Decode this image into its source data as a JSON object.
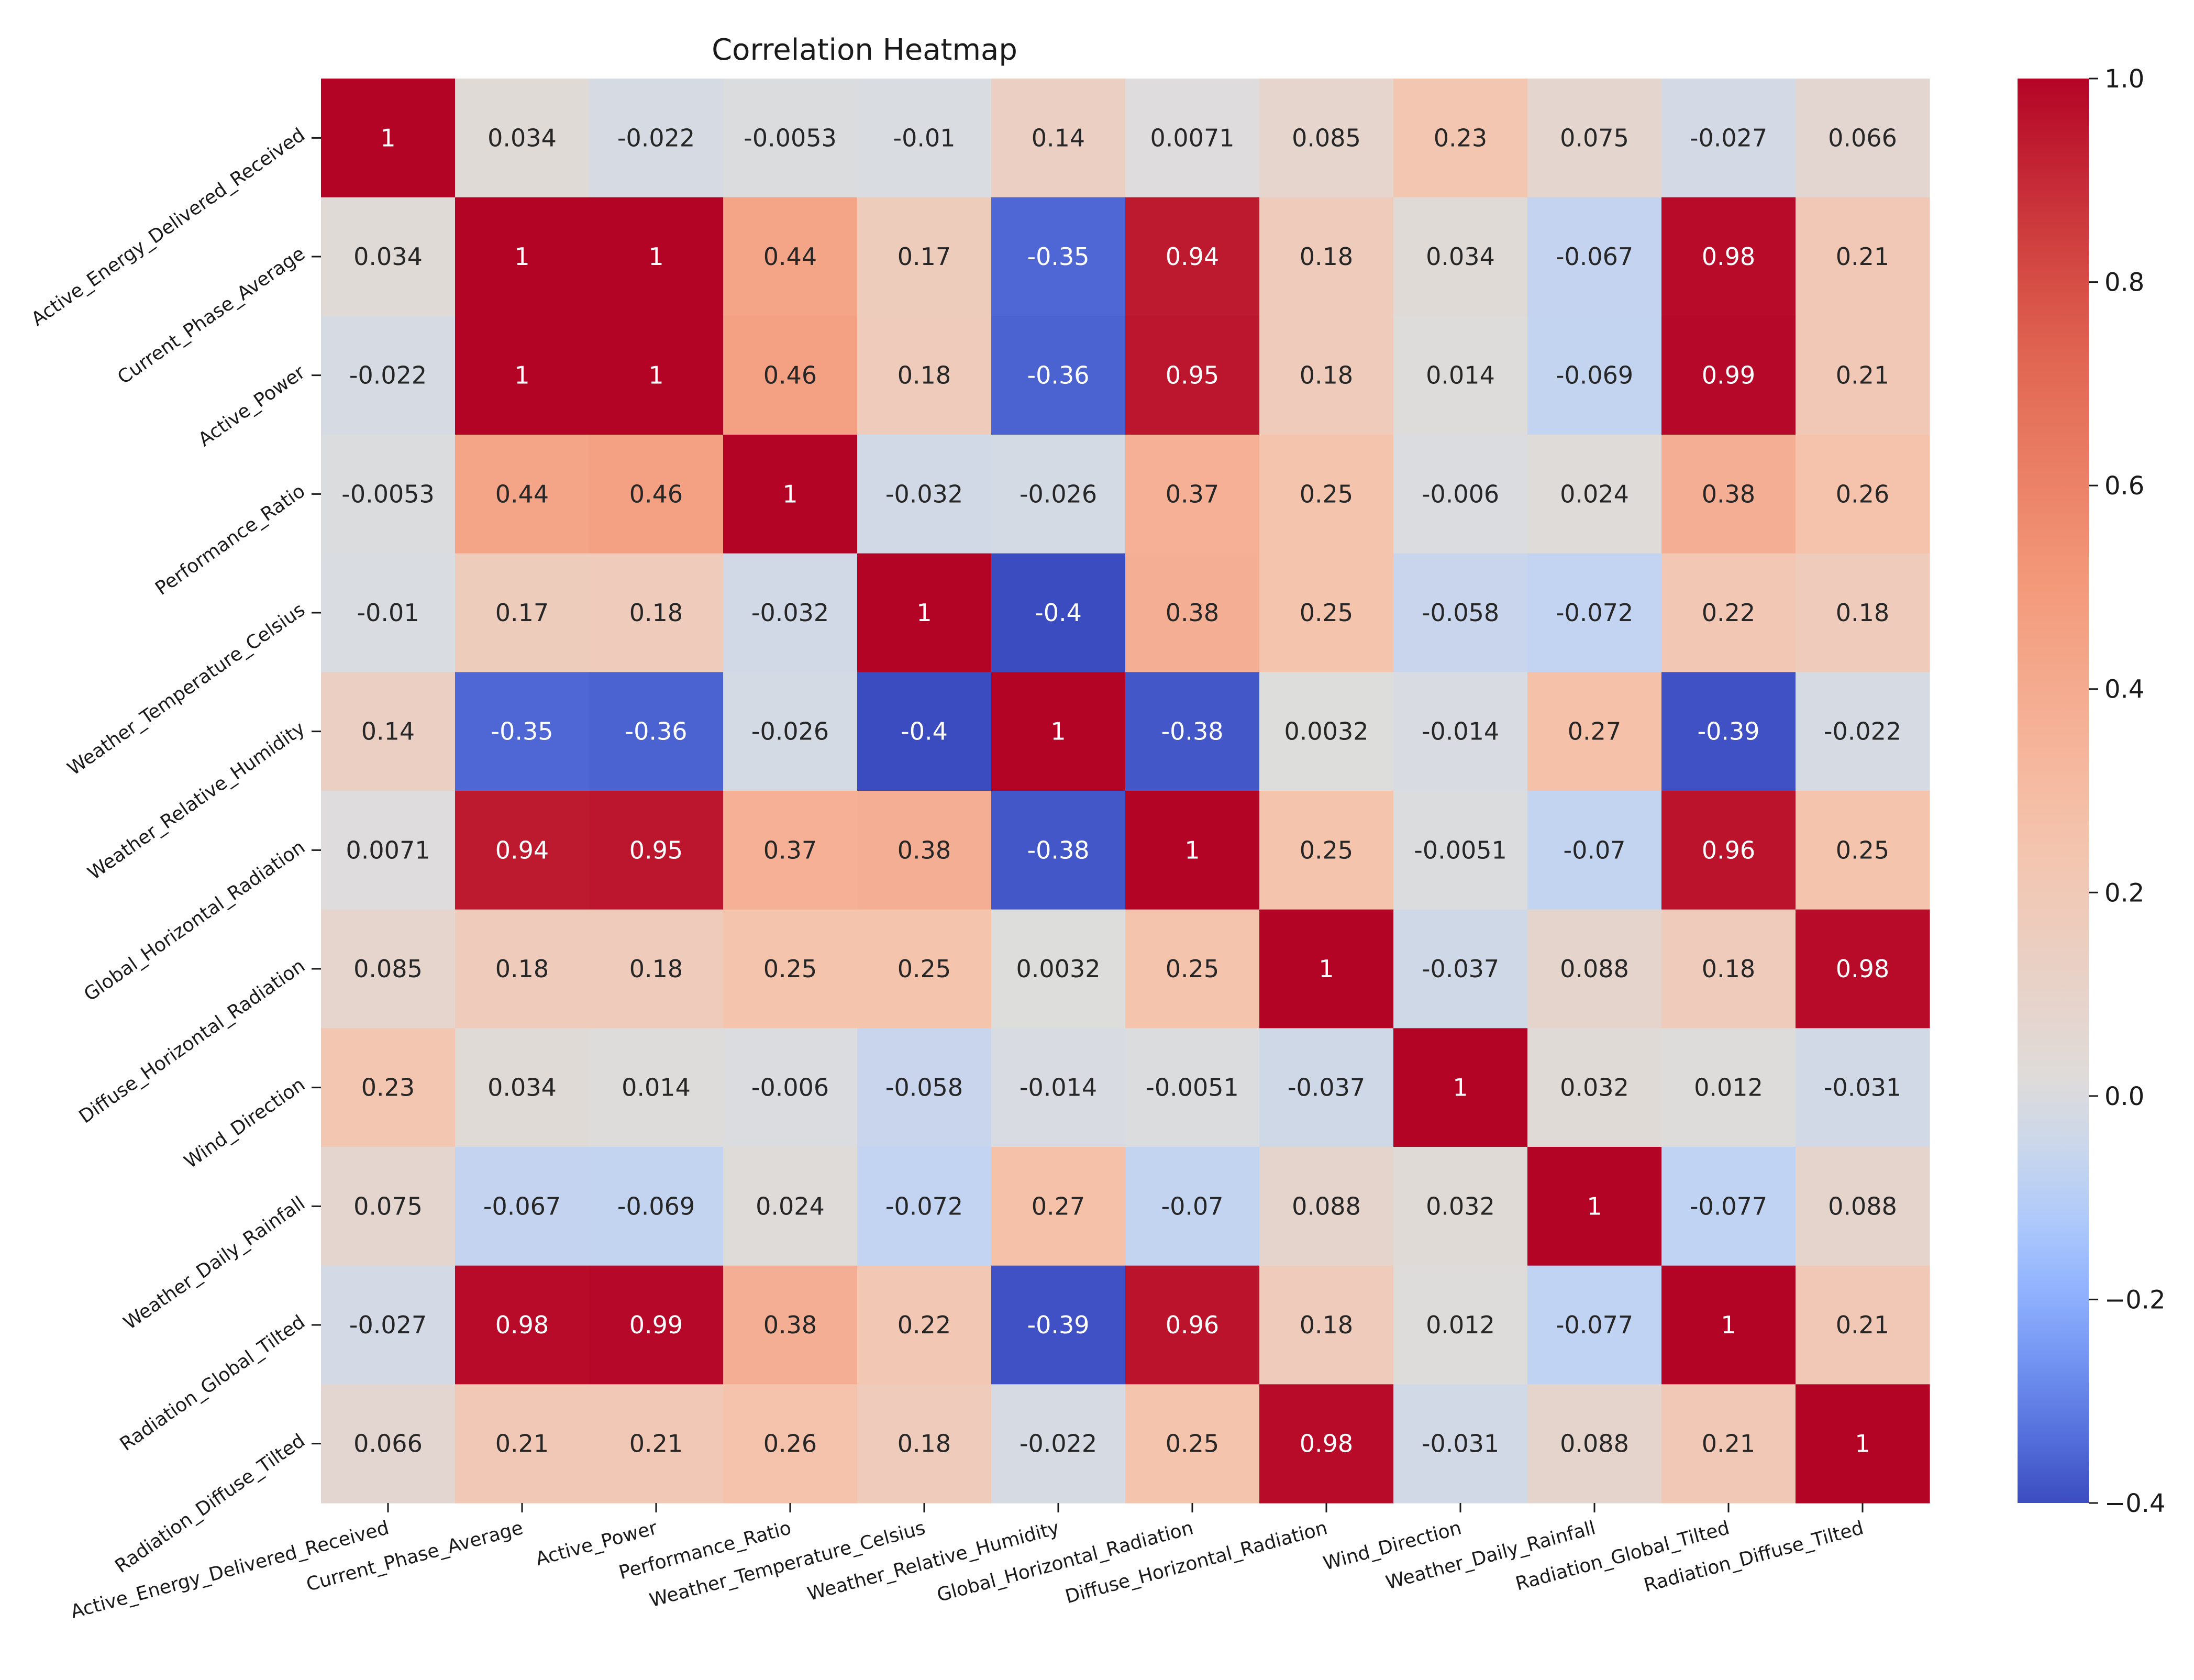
{
  "chart_data": {
    "type": "heatmap",
    "title": "Correlation Heatmap",
    "xlabel": "",
    "ylabel": "",
    "colormap": "coolwarm",
    "vmin": -0.4,
    "vmax": 1.0,
    "colorbar_ticks": [
      1.0,
      0.8,
      0.6,
      0.4,
      0.2,
      0.0,
      -0.2,
      -0.4
    ],
    "colorbar_tick_labels": [
      "1.0",
      "0.8",
      "0.6",
      "0.4",
      "0.2",
      "0.0",
      "−0.2",
      "−0.4"
    ],
    "labels": [
      "Active_Energy_Delivered_Received",
      "Current_Phase_Average",
      "Active_Power",
      "Performance_Ratio",
      "Weather_Temperature_Celsius",
      "Weather_Relative_Humidity",
      "Global_Horizontal_Radiation",
      "Diffuse_Horizontal_Radiation",
      "Wind_Direction",
      "Weather_Daily_Rainfall",
      "Radiation_Global_Tilted",
      "Radiation_Diffuse_Tilted"
    ],
    "values": [
      [
        1,
        0.034,
        -0.022,
        -0.0053,
        -0.01,
        0.14,
        0.0071,
        0.085,
        0.23,
        0.075,
        -0.027,
        0.066
      ],
      [
        0.034,
        1,
        1,
        0.44,
        0.17,
        -0.35,
        0.94,
        0.18,
        0.034,
        -0.067,
        0.98,
        0.21
      ],
      [
        -0.022,
        1,
        1,
        0.46,
        0.18,
        -0.36,
        0.95,
        0.18,
        0.014,
        -0.069,
        0.99,
        0.21
      ],
      [
        -0.0053,
        0.44,
        0.46,
        1,
        -0.032,
        -0.026,
        0.37,
        0.25,
        -0.006,
        0.024,
        0.38,
        0.26
      ],
      [
        -0.01,
        0.17,
        0.18,
        -0.032,
        1,
        -0.4,
        0.38,
        0.25,
        -0.058,
        -0.072,
        0.22,
        0.18
      ],
      [
        0.14,
        -0.35,
        -0.36,
        -0.026,
        -0.4,
        1,
        -0.38,
        0.0032,
        -0.014,
        0.27,
        -0.39,
        -0.022
      ],
      [
        0.0071,
        0.94,
        0.95,
        0.37,
        0.38,
        -0.38,
        1,
        0.25,
        -0.0051,
        -0.07,
        0.96,
        0.25
      ],
      [
        0.085,
        0.18,
        0.18,
        0.25,
        0.25,
        0.0032,
        0.25,
        1,
        -0.037,
        0.088,
        0.18,
        0.98
      ],
      [
        0.23,
        0.034,
        0.014,
        -0.006,
        -0.058,
        -0.014,
        -0.0051,
        -0.037,
        1,
        0.032,
        0.012,
        -0.031
      ],
      [
        0.075,
        -0.067,
        -0.069,
        0.024,
        -0.072,
        0.27,
        -0.07,
        0.088,
        0.032,
        1,
        -0.077,
        0.088
      ],
      [
        -0.027,
        0.98,
        0.99,
        0.38,
        0.22,
        -0.39,
        0.96,
        0.18,
        0.012,
        -0.077,
        1,
        0.21
      ],
      [
        0.066,
        0.21,
        0.21,
        0.26,
        0.18,
        -0.022,
        0.25,
        0.98,
        -0.031,
        0.088,
        0.21,
        1
      ]
    ],
    "cell_labels": [
      [
        "1",
        "0.034",
        "-0.022",
        "-0.0053",
        "-0.01",
        "0.14",
        "0.0071",
        "0.085",
        "0.23",
        "0.075",
        "-0.027",
        "0.066"
      ],
      [
        "0.034",
        "1",
        "1",
        "0.44",
        "0.17",
        "-0.35",
        "0.94",
        "0.18",
        "0.034",
        "-0.067",
        "0.98",
        "0.21"
      ],
      [
        "-0.022",
        "1",
        "1",
        "0.46",
        "0.18",
        "-0.36",
        "0.95",
        "0.18",
        "0.014",
        "-0.069",
        "0.99",
        "0.21"
      ],
      [
        "-0.0053",
        "0.44",
        "0.46",
        "1",
        "-0.032",
        "-0.026",
        "0.37",
        "0.25",
        "-0.006",
        "0.024",
        "0.38",
        "0.26"
      ],
      [
        "-0.01",
        "0.17",
        "0.18",
        "-0.032",
        "1",
        "-0.4",
        "0.38",
        "0.25",
        "-0.058",
        "-0.072",
        "0.22",
        "0.18"
      ],
      [
        "0.14",
        "-0.35",
        "-0.36",
        "-0.026",
        "-0.4",
        "1",
        "-0.38",
        "0.0032",
        "-0.014",
        "0.27",
        "-0.39",
        "-0.022"
      ],
      [
        "0.0071",
        "0.94",
        "0.95",
        "0.37",
        "0.38",
        "-0.38",
        "1",
        "0.25",
        "-0.0051",
        "-0.07",
        "0.96",
        "0.25"
      ],
      [
        "0.085",
        "0.18",
        "0.18",
        "0.25",
        "0.25",
        "0.0032",
        "0.25",
        "1",
        "-0.037",
        "0.088",
        "0.18",
        "0.98"
      ],
      [
        "0.23",
        "0.034",
        "0.014",
        "-0.006",
        "-0.058",
        "-0.014",
        "-0.0051",
        "-0.037",
        "1",
        "0.032",
        "0.012",
        "-0.031"
      ],
      [
        "0.075",
        "-0.067",
        "-0.069",
        "0.024",
        "-0.072",
        "0.27",
        "-0.07",
        "0.088",
        "0.032",
        "1",
        "-0.077",
        "0.088"
      ],
      [
        "-0.027",
        "0.98",
        "0.99",
        "0.38",
        "0.22",
        "-0.39",
        "0.96",
        "0.18",
        "0.012",
        "-0.077",
        "1",
        "0.21"
      ],
      [
        "0.066",
        "0.21",
        "0.21",
        "0.26",
        "0.18",
        "-0.022",
        "0.25",
        "0.98",
        "-0.031",
        "0.088",
        "0.21",
        "1"
      ]
    ]
  }
}
